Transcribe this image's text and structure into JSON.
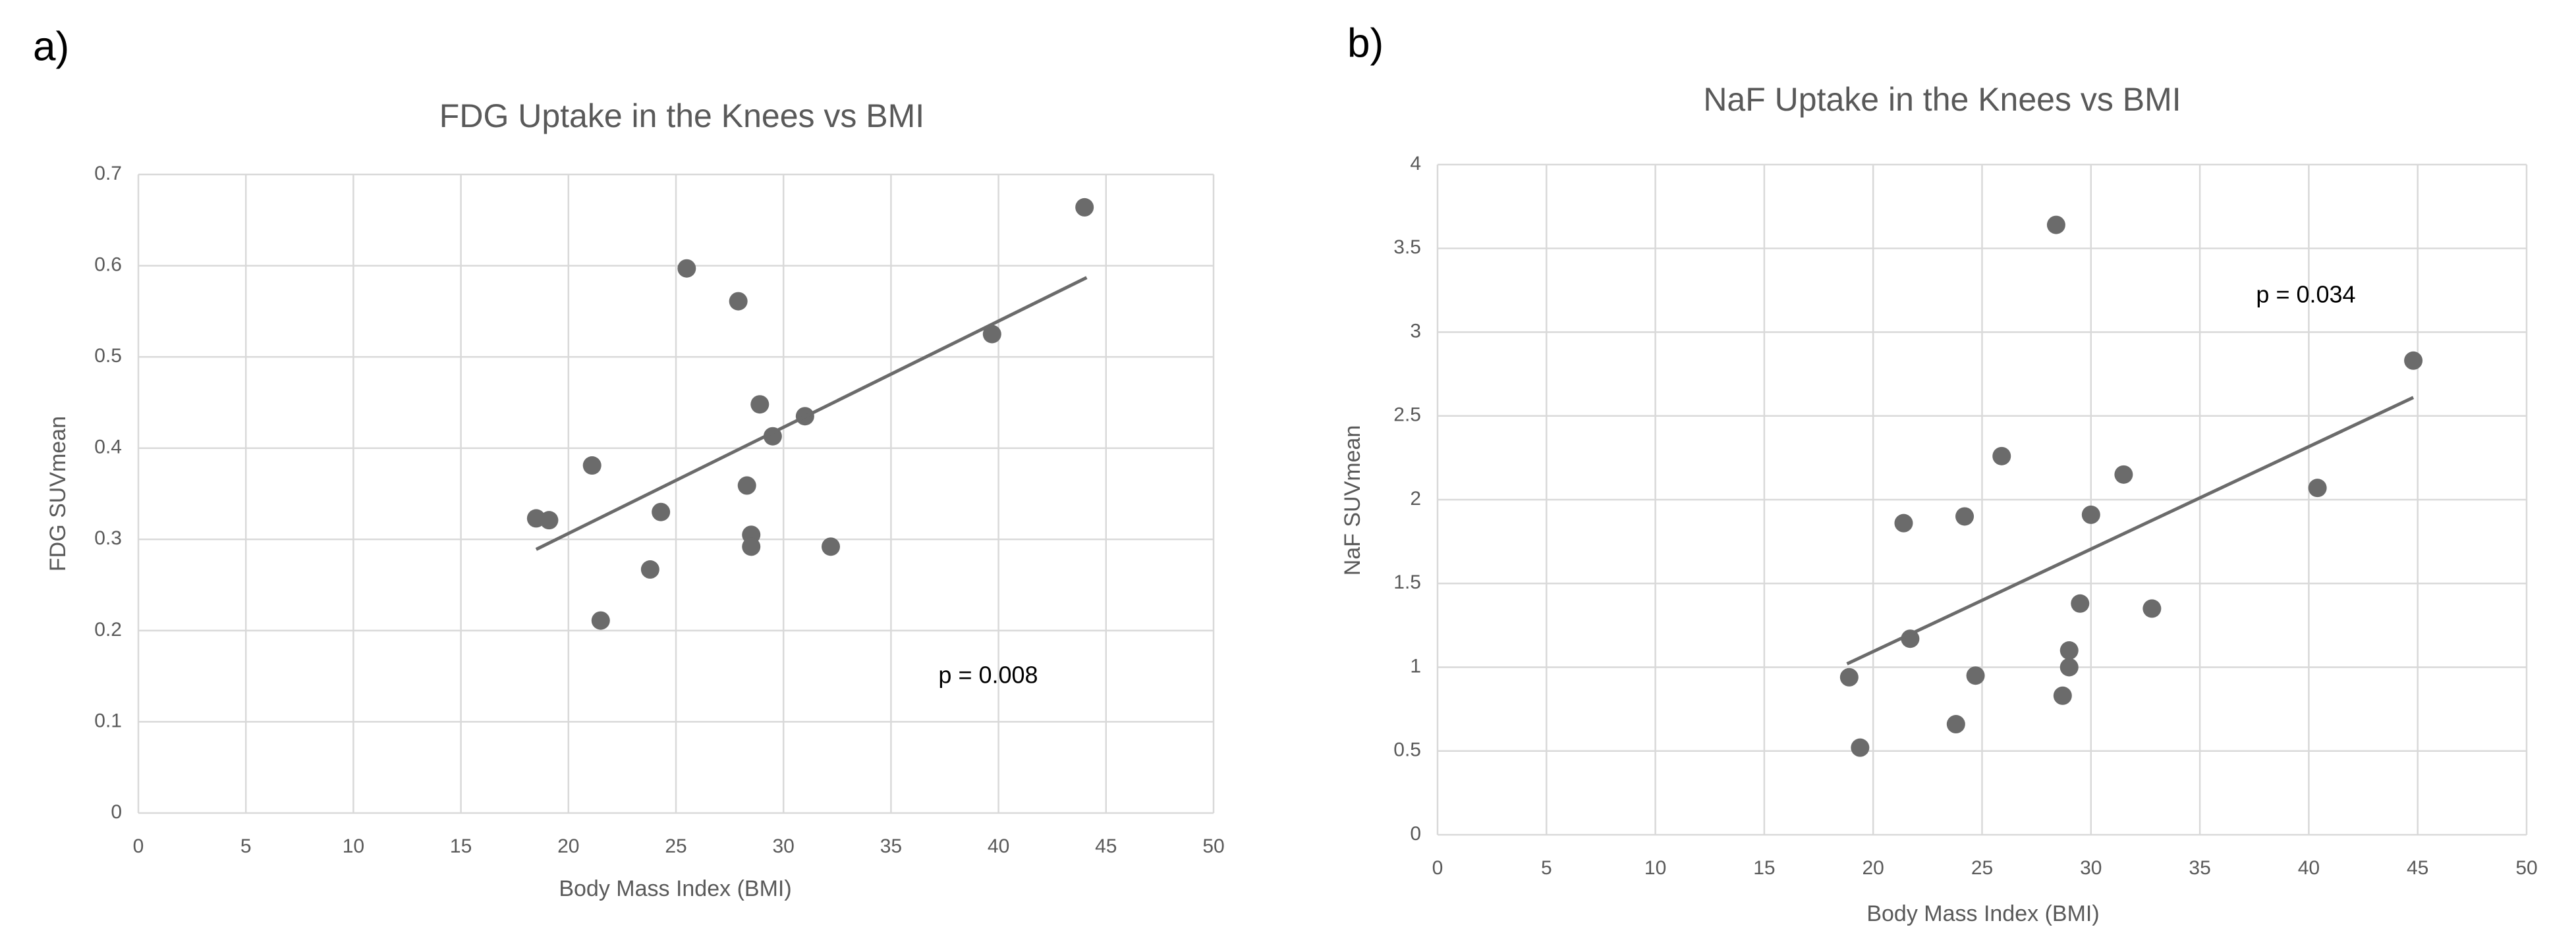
{
  "chart_data": [
    {
      "type": "scatter",
      "panel_label": "a)",
      "title": "FDG Uptake in the Knees vs BMI",
      "x_label": "Body Mass Index (BMI)",
      "y_label": "FDG SUVmean",
      "annotation": "p = 0.008",
      "x": [
        18.5,
        19.1,
        21.1,
        21.5,
        23.8,
        24.3,
        25.5,
        27.9,
        28.3,
        28.5,
        28.5,
        28.9,
        29.5,
        31.0,
        32.2,
        39.7,
        44.0
      ],
      "y": [
        0.323,
        0.321,
        0.381,
        0.211,
        0.267,
        0.33,
        0.597,
        0.561,
        0.359,
        0.305,
        0.292,
        0.448,
        0.413,
        0.435,
        0.292,
        0.525,
        0.664
      ],
      "color": "#6b6b6b",
      "trendline": {
        "x": [
          18.5,
          44.1
        ],
        "y": [
          0.289,
          0.587
        ],
        "color": "#6b6b6b"
      },
      "xlim": [
        0,
        50
      ],
      "xticks": [
        0,
        5,
        10,
        15,
        20,
        25,
        30,
        35,
        40,
        45,
        50
      ],
      "ylim": [
        0,
        0.7
      ],
      "yticks": [
        0,
        0.1,
        0.2,
        0.3,
        0.4,
        0.5,
        0.6,
        0.7
      ],
      "grid": true
    },
    {
      "type": "scatter",
      "panel_label": "b)",
      "title": "NaF Uptake in the Knees vs BMI",
      "x_label": "Body Mass Index (BMI)",
      "y_label": "NaF SUVmean",
      "annotation": "p = 0.034",
      "x": [
        18.9,
        19.4,
        21.4,
        21.7,
        23.8,
        24.2,
        24.7,
        25.9,
        28.4,
        28.7,
        29.0,
        29.0,
        29.5,
        30.0,
        31.5,
        32.8,
        40.4,
        44.8
      ],
      "y": [
        0.94,
        0.52,
        1.86,
        1.17,
        0.66,
        1.9,
        0.95,
        2.26,
        3.64,
        0.83,
        1.1,
        1.0,
        1.38,
        1.91,
        2.15,
        1.35,
        2.07,
        2.83
      ],
      "color": "#6b6b6b",
      "trendline": {
        "x": [
          18.8,
          44.8
        ],
        "y": [
          1.02,
          2.61
        ],
        "color": "#6b6b6b"
      },
      "xlim": [
        0,
        50
      ],
      "xticks": [
        0,
        5,
        10,
        15,
        20,
        25,
        30,
        35,
        40,
        45,
        50
      ],
      "ylim": [
        0,
        4
      ],
      "yticks": [
        0,
        0.5,
        1,
        1.5,
        2,
        2.5,
        3,
        3.5,
        4
      ],
      "grid": true
    }
  ]
}
